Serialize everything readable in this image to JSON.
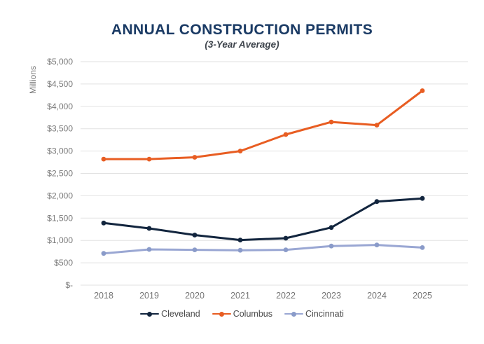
{
  "header": {
    "title": "ANNUAL CONSTRUCTION PERMITS",
    "subtitle": "(3-Year Average)"
  },
  "colors": {
    "title": "#1A3A64",
    "subtitle": "#3E444C",
    "gridline": "#E2E2E2",
    "axis_label": "#7A7A7A",
    "x_label": "#757575",
    "legend_text": "#4A4A4A",
    "background": "#FFFFFF"
  },
  "chart_data": {
    "type": "line",
    "title": "ANNUAL CONSTRUCTION PERMITS",
    "subtitle": "(3-Year Average)",
    "xlabel": "",
    "ylabel": "Millions",
    "categories": [
      "2018",
      "2019",
      "2020",
      "2021",
      "2022",
      "2023",
      "2024",
      "2025"
    ],
    "ylim": [
      0,
      5000
    ],
    "y_step": 500,
    "y_tick_labels": [
      "$-",
      "$500",
      "$1,000",
      "$1,500",
      "$2,000",
      "$2,500",
      "$3,000",
      "$3,500",
      "$4,000",
      "$4,500",
      "$5,000"
    ],
    "grid": true,
    "legend_position": "bottom",
    "series": [
      {
        "name": "Cleveland",
        "color": "#12253E",
        "dot_color": "#12253E",
        "values": [
          1390,
          1270,
          1120,
          1010,
          1050,
          1290,
          1870,
          1940
        ]
      },
      {
        "name": "Columbus",
        "color": "#E85D22",
        "dot_color": "#E85D22",
        "values": [
          2820,
          2820,
          2860,
          3000,
          3370,
          3650,
          3580,
          4350
        ]
      },
      {
        "name": "Cincinnati",
        "color": "#9AA7D3",
        "dot_color": "#8A9BC9",
        "values": [
          710,
          800,
          790,
          780,
          790,
          875,
          900,
          840
        ]
      }
    ]
  }
}
